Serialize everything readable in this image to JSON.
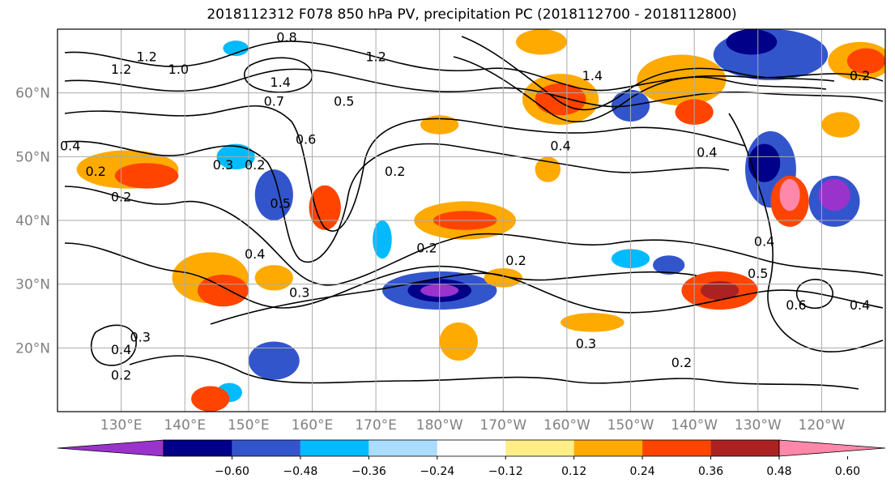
{
  "title": "2018112312 F078 850 hPa PV, precipitation PC (2018112700 - 2018112800)",
  "map": {
    "lon_range": [
      120,
      250
    ],
    "lat_range": [
      10,
      70
    ],
    "lon_ticks": [
      {
        "lon": 130,
        "label": "130°E"
      },
      {
        "lon": 140,
        "label": "140°E"
      },
      {
        "lon": 150,
        "label": "150°E"
      },
      {
        "lon": 160,
        "label": "160°E"
      },
      {
        "lon": 170,
        "label": "170°E"
      },
      {
        "lon": 180,
        "label": "180°W"
      },
      {
        "lon": 190,
        "label": "170°W"
      },
      {
        "lon": 200,
        "label": "160°W"
      },
      {
        "lon": 210,
        "label": "150°W"
      },
      {
        "lon": 220,
        "label": "140°W"
      },
      {
        "lon": 230,
        "label": "130°W"
      },
      {
        "lon": 240,
        "label": "120°W"
      }
    ],
    "lat_ticks": [
      {
        "lat": 20,
        "label": "20°N"
      },
      {
        "lat": 30,
        "label": "30°N"
      },
      {
        "lat": 40,
        "label": "40°N"
      },
      {
        "lat": 50,
        "label": "50°N"
      },
      {
        "lat": 60,
        "label": "60°N"
      }
    ],
    "grid": true,
    "contour_labels": [
      {
        "text": "0.8",
        "lon": 156,
        "lat": 68
      },
      {
        "text": "1.2",
        "lon": 130,
        "lat": 63
      },
      {
        "text": "1.2",
        "lon": 134,
        "lat": 65
      },
      {
        "text": "1.0",
        "lon": 139,
        "lat": 63
      },
      {
        "text": "1.2",
        "lon": 170,
        "lat": 65
      },
      {
        "text": "1.4",
        "lon": 155,
        "lat": 61
      },
      {
        "text": "0.7",
        "lon": 154,
        "lat": 58
      },
      {
        "text": "0.5",
        "lon": 165,
        "lat": 58
      },
      {
        "text": "0.4",
        "lon": 122,
        "lat": 51
      },
      {
        "text": "0.2",
        "lon": 126,
        "lat": 47
      },
      {
        "text": "0.2",
        "lon": 130,
        "lat": 43
      },
      {
        "text": "0.3",
        "lon": 146,
        "lat": 48
      },
      {
        "text": "0.2",
        "lon": 151,
        "lat": 48
      },
      {
        "text": "0.6",
        "lon": 159,
        "lat": 52
      },
      {
        "text": "0.5",
        "lon": 155,
        "lat": 42
      },
      {
        "text": "0.4",
        "lon": 151,
        "lat": 34
      },
      {
        "text": "0.2",
        "lon": 173,
        "lat": 47
      },
      {
        "text": "0.2",
        "lon": 178,
        "lat": 35
      },
      {
        "text": "0.2",
        "lon": 192,
        "lat": 33
      },
      {
        "text": "0.3",
        "lon": 158,
        "lat": 28
      },
      {
        "text": "0.4",
        "lon": 199,
        "lat": 51
      },
      {
        "text": "0.4",
        "lon": 222,
        "lat": 50
      },
      {
        "text": "1.4",
        "lon": 204,
        "lat": 62
      },
      {
        "text": "0.3",
        "lon": 203,
        "lat": 20
      },
      {
        "text": "0.2",
        "lon": 218,
        "lat": 17
      },
      {
        "text": "0.4",
        "lon": 231,
        "lat": 36
      },
      {
        "text": "0.5",
        "lon": 230,
        "lat": 31
      },
      {
        "text": "0.6",
        "lon": 236,
        "lat": 26
      },
      {
        "text": "0.4",
        "lon": 246,
        "lat": 26
      },
      {
        "text": "0.4",
        "lon": 130,
        "lat": 19
      },
      {
        "text": "0.3",
        "lon": 133,
        "lat": 21
      },
      {
        "text": "0.2",
        "lon": 130,
        "lat": 15
      },
      {
        "text": "0.2",
        "lon": 246,
        "lat": 62
      }
    ]
  },
  "colorbar": {
    "colors": [
      "#9933cc",
      "#000088",
      "#3355cc",
      "#00bbff",
      "#aaddff",
      "#ffffff",
      "#ffee88",
      "#ffaa00",
      "#ff4400",
      "#aa2222",
      "#ff88aa"
    ],
    "tick_labels": [
      "−0.60",
      "−0.48",
      "−0.36",
      "−0.24",
      "−0.12",
      "0.12",
      "0.24",
      "0.36",
      "0.48",
      "0.60"
    ]
  },
  "shaded_regions": [
    {
      "color": "#ffaa00",
      "lon": 131,
      "lat": 48,
      "rx": 8,
      "ry": 3
    },
    {
      "color": "#ff4400",
      "lon": 134,
      "lat": 47,
      "rx": 5,
      "ry": 2
    },
    {
      "color": "#ffaa00",
      "lon": 144,
      "lat": 31,
      "rx": 6,
      "ry": 4
    },
    {
      "color": "#ff4400",
      "lon": 146,
      "lat": 29,
      "rx": 4,
      "ry": 2.5
    },
    {
      "color": "#ffaa00",
      "lon": 154,
      "lat": 31,
      "rx": 3,
      "ry": 2
    },
    {
      "color": "#3355cc",
      "lon": 154,
      "lat": 44,
      "rx": 3,
      "ry": 4
    },
    {
      "color": "#00bbff",
      "lon": 148,
      "lat": 50,
      "rx": 3,
      "ry": 2
    },
    {
      "color": "#ff4400",
      "lon": 162,
      "lat": 42,
      "rx": 2.5,
      "ry": 3.5
    },
    {
      "color": "#ffaa00",
      "lon": 184,
      "lat": 40,
      "rx": 8,
      "ry": 3
    },
    {
      "color": "#ff4400",
      "lon": 184,
      "lat": 40,
      "rx": 5,
      "ry": 1.5
    },
    {
      "color": "#3355cc",
      "lon": 180,
      "lat": 29,
      "rx": 9,
      "ry": 3
    },
    {
      "color": "#000088",
      "lon": 180,
      "lat": 29,
      "rx": 5,
      "ry": 1.8
    },
    {
      "color": "#9933cc",
      "lon": 180,
      "lat": 29,
      "rx": 3,
      "ry": 1
    },
    {
      "color": "#3355cc",
      "lon": 154,
      "lat": 18,
      "rx": 4,
      "ry": 3
    },
    {
      "color": "#ffaa00",
      "lon": 183,
      "lat": 21,
      "rx": 3,
      "ry": 3
    },
    {
      "color": "#ffaa00",
      "lon": 204,
      "lat": 24,
      "rx": 5,
      "ry": 1.5
    },
    {
      "color": "#ff4400",
      "lon": 224,
      "lat": 29,
      "rx": 6,
      "ry": 3
    },
    {
      "color": "#aa2222",
      "lon": 224,
      "lat": 29,
      "rx": 3,
      "ry": 1.5
    },
    {
      "color": "#3355cc",
      "lon": 216,
      "lat": 33,
      "rx": 2.5,
      "ry": 1.5
    },
    {
      "color": "#00bbff",
      "lon": 210,
      "lat": 34,
      "rx": 3,
      "ry": 1.5
    },
    {
      "color": "#ffaa00",
      "lon": 190,
      "lat": 31,
      "rx": 3,
      "ry": 1.5
    },
    {
      "color": "#ffaa00",
      "lon": 199,
      "lat": 59,
      "rx": 6,
      "ry": 4
    },
    {
      "color": "#ff4400",
      "lon": 199,
      "lat": 59,
      "rx": 4,
      "ry": 2.5
    },
    {
      "color": "#3355cc",
      "lon": 210,
      "lat": 58,
      "rx": 3,
      "ry": 2.5
    },
    {
      "color": "#ffaa00",
      "lon": 218,
      "lat": 62,
      "rx": 7,
      "ry": 4
    },
    {
      "color": "#ff4400",
      "lon": 220,
      "lat": 57,
      "rx": 3,
      "ry": 2
    },
    {
      "color": "#3355cc",
      "lon": 232,
      "lat": 66,
      "rx": 9,
      "ry": 4
    },
    {
      "color": "#000088",
      "lon": 229,
      "lat": 68,
      "rx": 4,
      "ry": 2
    },
    {
      "color": "#ffaa00",
      "lon": 246,
      "lat": 65,
      "rx": 5,
      "ry": 3
    },
    {
      "color": "#ff4400",
      "lon": 247,
      "lat": 65,
      "rx": 3,
      "ry": 2
    },
    {
      "color": "#3355cc",
      "lon": 232,
      "lat": 48,
      "rx": 4,
      "ry": 6
    },
    {
      "color": "#000088",
      "lon": 231,
      "lat": 49,
      "rx": 2.5,
      "ry": 3
    },
    {
      "color": "#ff4400",
      "lon": 235,
      "lat": 43,
      "rx": 3,
      "ry": 4
    },
    {
      "color": "#ff88aa",
      "lon": 235,
      "lat": 44,
      "rx": 1.6,
      "ry": 2.5
    },
    {
      "color": "#3355cc",
      "lon": 242,
      "lat": 43,
      "rx": 4,
      "ry": 4
    },
    {
      "color": "#9933cc",
      "lon": 242,
      "lat": 44,
      "rx": 2.5,
      "ry": 2.5
    },
    {
      "color": "#00bbff",
      "lon": 148,
      "lat": 67,
      "rx": 2,
      "ry": 1.2
    },
    {
      "color": "#ffaa00",
      "lon": 196,
      "lat": 68,
      "rx": 4,
      "ry": 2
    },
    {
      "color": "#ffaa00",
      "lon": 180,
      "lat": 55,
      "rx": 3,
      "ry": 1.5
    },
    {
      "color": "#ffaa00",
      "lon": 197,
      "lat": 48,
      "rx": 2,
      "ry": 2
    },
    {
      "color": "#ffaa00",
      "lon": 243,
      "lat": 55,
      "rx": 3,
      "ry": 2
    },
    {
      "color": "#00bbff",
      "lon": 171,
      "lat": 37,
      "rx": 1.5,
      "ry": 3
    },
    {
      "color": "#00bbff",
      "lon": 147,
      "lat": 13,
      "rx": 2,
      "ry": 1.5
    },
    {
      "color": "#ff4400",
      "lon": 144,
      "lat": 12,
      "rx": 3,
      "ry": 2
    }
  ]
}
